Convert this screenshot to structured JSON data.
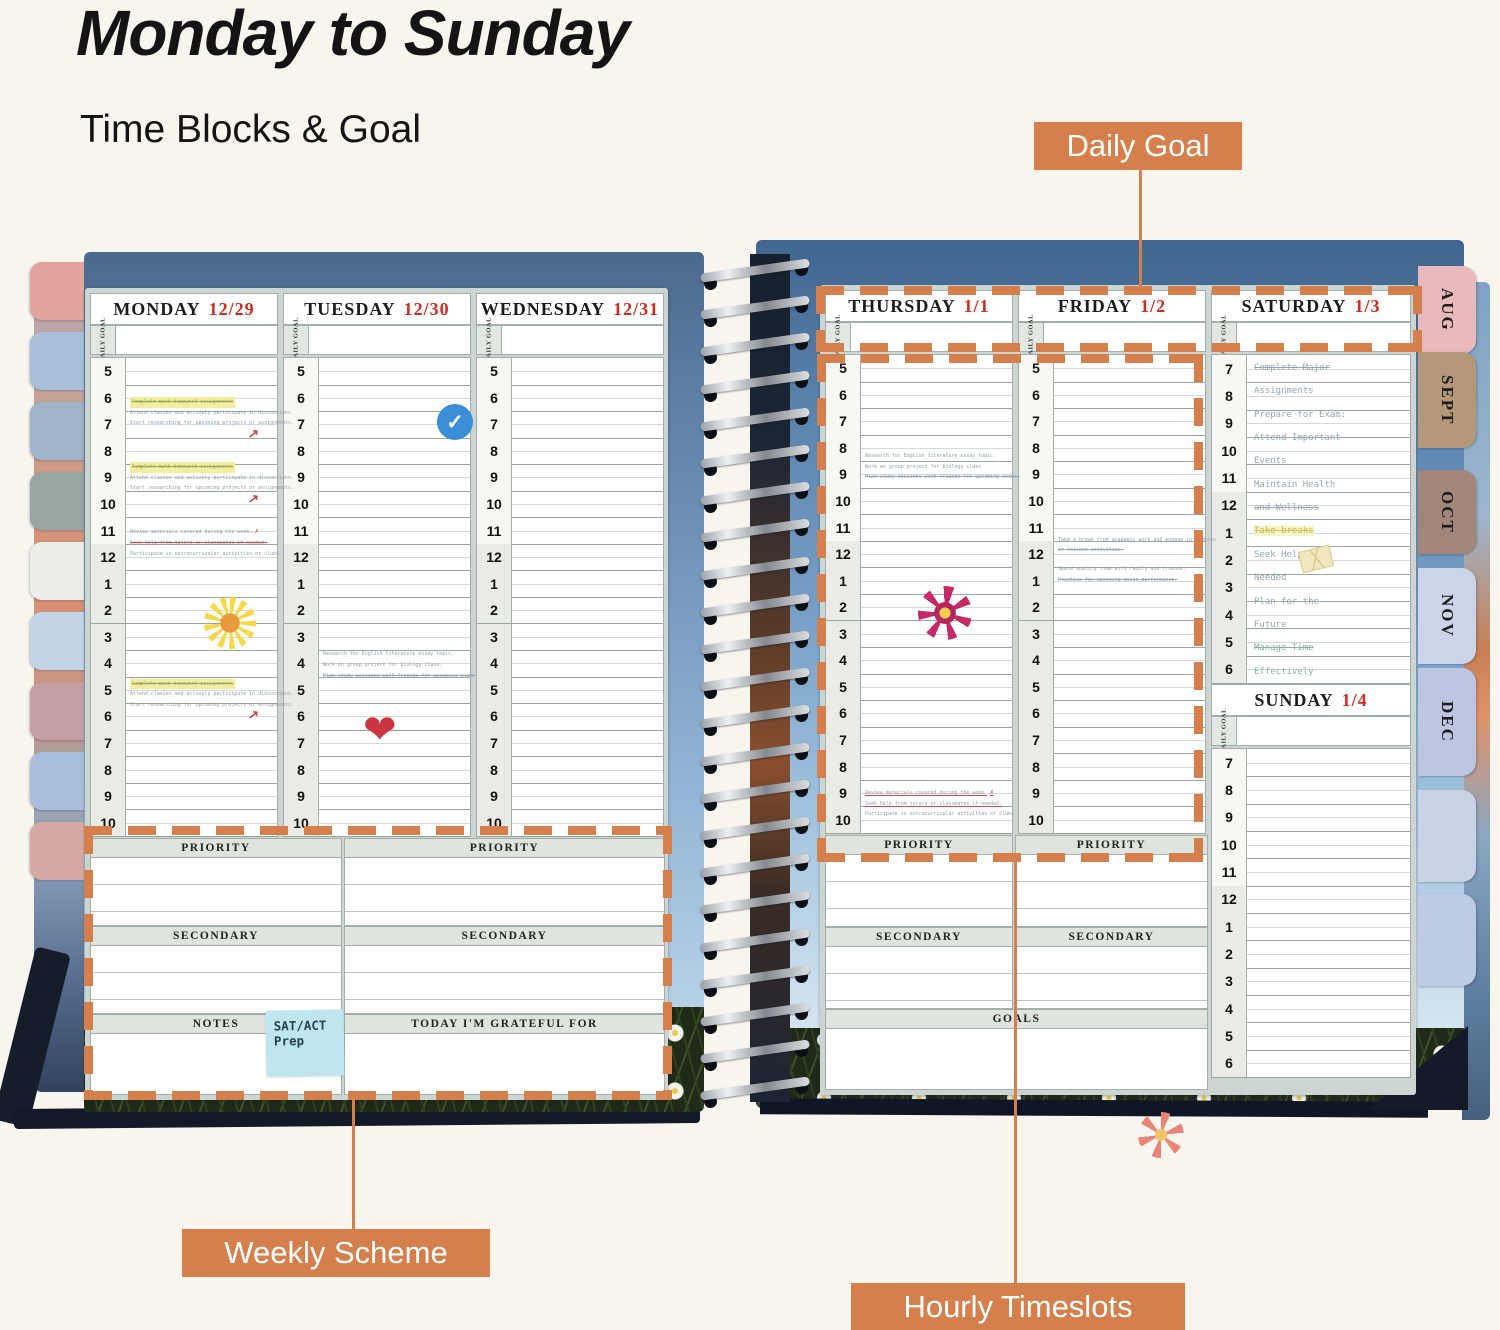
{
  "title": "Monday to Sunday",
  "subtitle": "Time Blocks & Goal",
  "accent_color": "#d5804c",
  "callouts": {
    "daily_goal": "Daily Goal",
    "weekly_scheme": "Weekly Scheme",
    "hourly_timeslots": "Hourly Timeslots"
  },
  "month_tabs": [
    "AUG",
    "SEPT",
    "OCT",
    "NOV",
    "DEC"
  ],
  "planner": {
    "daily_goal_label": "DAILY GOAL",
    "hours_full": [
      "5",
      "6",
      "7",
      "8",
      "9",
      "10",
      "11",
      "12",
      "1",
      "2",
      "3",
      "4",
      "5",
      "6",
      "7",
      "8",
      "9",
      "10"
    ],
    "hours_weekend": [
      "7",
      "8",
      "9",
      "10",
      "11",
      "12",
      "1",
      "2",
      "3",
      "4",
      "5",
      "6"
    ],
    "left_days": [
      {
        "name": "MONDAY",
        "date": "12/29",
        "entries": [
          {
            "slot": 1.4,
            "arrow": true,
            "lines": [
              {
                "text": "Complete math homework assignments",
                "style": "highlight"
              },
              {
                "text": "Attend classes and actively participate in discussions.",
                "style": ""
              },
              {
                "text": "Start researching for upcoming projects or assignments.",
                "style": ""
              }
            ]
          },
          {
            "slot": 3.85,
            "arrow": true,
            "lines": [
              {
                "text": "Complete math homework assignments",
                "style": "highlight"
              },
              {
                "text": "Attend classes and actively participate in discussions.",
                "style": ""
              },
              {
                "text": "Start researching for upcoming projects or assignments.",
                "style": ""
              }
            ]
          },
          {
            "slot": 6.27,
            "lines": [
              {
                "text": "Review materials covered during the week.",
                "style": "redx"
              },
              {
                "text": "Seek help from tutors or classmates if needed.",
                "style": "strike-red"
              },
              {
                "text": "Participate in extracurricular activities or clubs",
                "style": ""
              }
            ]
          },
          {
            "slot": 12.0,
            "arrow": true,
            "lines": [
              {
                "text": "Complete math homework assignments",
                "style": "highlight"
              },
              {
                "text": "Attend classes and actively participate in discussions.",
                "style": ""
              },
              {
                "text": "Start researching for upcoming projects or assignments.",
                "style": ""
              }
            ]
          }
        ]
      },
      {
        "name": "TUESDAY",
        "date": "12/30",
        "entries": [
          {
            "slot": 10.9,
            "lines": [
              {
                "text": "Research for English literature essay topic.",
                "style": ""
              },
              {
                "text": "Work on group project for biology class.",
                "style": ""
              },
              {
                "text": "Plan study sessions with friends for upcoming exams",
                "style": "strike"
              }
            ]
          }
        ]
      },
      {
        "name": "WEDNESDAY",
        "date": "12/31",
        "entries": []
      }
    ],
    "right_days": [
      {
        "name": "THURSDAY",
        "date": "1/1",
        "entries": [
          {
            "slot": 3.55,
            "lines": [
              {
                "text": "Research for English literature essay topic.",
                "style": ""
              },
              {
                "text": "Work on group project for biology class.",
                "style": ""
              },
              {
                "text": "Plan study sessions with friends for upcoming exams.",
                "style": "strike"
              }
            ]
          },
          {
            "slot": 16.2,
            "lines": [
              {
                "text": "Review materials covered during the week.",
                "style": "underline-red redx"
              },
              {
                "text": "Seek help from tutors or classmates if needed.",
                "style": "underline-red"
              },
              {
                "text": "Participate in extracurricular activities or clubs",
                "style": ""
              }
            ]
          }
        ]
      },
      {
        "name": "FRIDAY",
        "date": "1/2",
        "entries": [
          {
            "slot": 6.7,
            "lines": [
              {
                "text": "Take a break from academic work and engage in hobbies",
                "style": ""
              },
              {
                "text": "or leisure activities.",
                "style": "strike"
              }
            ]
          },
          {
            "slot": 7.8,
            "lines": [
              {
                "text": "Spend quality time with family and friends.",
                "style": ""
              },
              {
                "text": "Practice for upcoming music performance.",
                "style": "strike"
              }
            ]
          }
        ]
      }
    ],
    "saturday": {
      "name": "SATURDAY",
      "date": "1/3",
      "lines": [
        {
          "text": "Complete Major",
          "style": "strike"
        },
        {
          "text": "Assignments",
          "style": ""
        },
        {
          "text": "Prepare for Exam:",
          "style": ""
        },
        {
          "text": "Attend Important",
          "style": "strike"
        },
        {
          "text": "Events",
          "style": ""
        },
        {
          "text": "Maintain Health",
          "style": ""
        },
        {
          "text": "and Wellness",
          "style": "strike"
        },
        {
          "text": "Take breaks",
          "style": "yellow"
        },
        {
          "text": "Seek Help When",
          "style": ""
        },
        {
          "text": "Needed",
          "style": ""
        },
        {
          "text": "Plan for the",
          "style": ""
        },
        {
          "text": "Future",
          "style": ""
        },
        {
          "text": "Manage Time",
          "style": "green strike"
        },
        {
          "text": "Effectively",
          "style": "green"
        }
      ]
    },
    "sunday": {
      "name": "SUNDAY",
      "date": "1/4",
      "entries": []
    },
    "left_bottom": {
      "col1": [
        "PRIORITY",
        "SECONDARY",
        "NOTES"
      ],
      "col2": [
        "PRIORITY",
        "SECONDARY",
        "TODAY I'M GRATEFUL FOR"
      ],
      "sticky_note": "SAT/ACT Prep"
    },
    "right_bottom": {
      "row1": [
        "PRIORITY",
        "PRIORITY"
      ],
      "row2": [
        "SECONDARY",
        "SECONDARY"
      ],
      "row3": [
        "GOALS"
      ]
    }
  }
}
